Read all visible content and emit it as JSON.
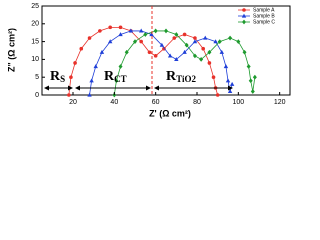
{
  "chart_data": {
    "type": "scatter",
    "x_label": "Z' (Ω cm²)",
    "y_label": "Z\" (Ω cm²)",
    "xlim": [
      5,
      125
    ],
    "xticks": [
      20,
      40,
      60,
      80,
      100,
      120
    ],
    "ylim": [
      0,
      25
    ],
    "yticks": [
      0,
      5,
      10,
      15,
      20,
      25
    ],
    "legend": "upper right",
    "series": [
      {
        "name": "Sample A",
        "color": "#e8312a",
        "marker": "circle",
        "x": [
          18,
          19,
          21,
          24,
          28,
          33,
          38,
          43,
          48,
          53,
          57,
          60,
          64,
          69,
          74,
          79,
          83,
          86,
          88,
          89,
          90
        ],
        "values": [
          0,
          5,
          9,
          13,
          16,
          18,
          19,
          19,
          18,
          15,
          12,
          11,
          13,
          16,
          17,
          16,
          13,
          9,
          5,
          2,
          0
        ]
      },
      {
        "name": "Sample B",
        "color": "#1f3fd8",
        "marker": "triangle",
        "x": [
          28,
          29,
          31,
          34,
          38,
          43,
          48,
          53,
          58,
          63,
          67,
          70,
          74,
          79,
          84,
          89,
          92,
          94,
          95,
          96,
          97
        ],
        "values": [
          0,
          4,
          8,
          12,
          15,
          17,
          18,
          18,
          17,
          14,
          11,
          10,
          12,
          15,
          16,
          15,
          12,
          8,
          4,
          1,
          3
        ]
      },
      {
        "name": "Sample C",
        "color": "#1e9a2e",
        "marker": "diamond",
        "x": [
          40,
          41,
          43,
          46,
          50,
          55,
          60,
          65,
          70,
          75,
          79,
          82,
          86,
          91,
          96,
          100,
          103,
          105,
          106,
          107,
          108
        ],
        "values": [
          0,
          4,
          8,
          12,
          15,
          17,
          18,
          18,
          17,
          14,
          11,
          10,
          12,
          15,
          16,
          15,
          12,
          8,
          4,
          1,
          5
        ]
      }
    ],
    "annotations": [
      {
        "main": "R",
        "sub": "S"
      },
      {
        "main": "R",
        "sub": "CT"
      },
      {
        "main": "R",
        "sub": "TiO2"
      }
    ]
  }
}
